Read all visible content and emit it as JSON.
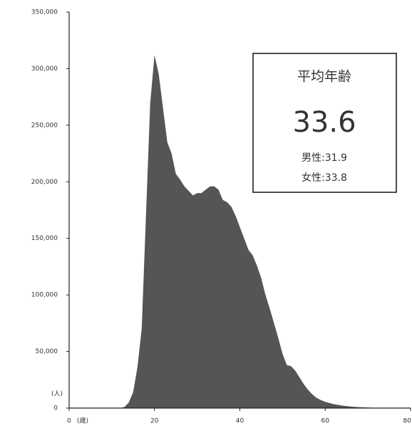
{
  "chart_data": {
    "type": "area",
    "color": "#555555",
    "x": [
      0,
      1,
      2,
      3,
      4,
      5,
      6,
      7,
      8,
      9,
      10,
      11,
      12,
      13,
      14,
      15,
      16,
      17,
      18,
      19,
      20,
      21,
      22,
      23,
      24,
      25,
      26,
      27,
      28,
      29,
      30,
      31,
      32,
      33,
      34,
      35,
      36,
      37,
      38,
      39,
      40,
      41,
      42,
      43,
      44,
      45,
      46,
      47,
      48,
      49,
      50,
      51,
      52,
      53,
      54,
      55,
      56,
      57,
      58,
      59,
      60,
      61,
      62,
      63,
      64,
      65,
      66,
      67,
      68,
      69,
      70,
      71,
      72,
      73,
      74,
      75,
      76,
      77,
      78,
      79,
      80
    ],
    "values": [
      0,
      0,
      0,
      0,
      0,
      0,
      0,
      0,
      0,
      0,
      0,
      0,
      0,
      1000,
      5000,
      14000,
      36000,
      70000,
      170000,
      270000,
      312000,
      295000,
      265000,
      235000,
      225000,
      207000,
      202000,
      196000,
      192000,
      188000,
      190000,
      190000,
      193000,
      196000,
      196000,
      193000,
      184000,
      182000,
      178000,
      170000,
      160000,
      150000,
      140000,
      135000,
      126000,
      115000,
      100000,
      88000,
      75000,
      62000,
      48000,
      38000,
      37000,
      33000,
      27000,
      21000,
      16000,
      12000,
      9000,
      7000,
      5500,
      4500,
      3500,
      2800,
      2200,
      1700,
      1300,
      1000,
      800,
      600,
      450,
      300,
      200,
      150,
      100,
      50,
      0,
      0,
      0,
      0,
      0
    ],
    "xlim": [
      0,
      80
    ],
    "xticks": [
      0,
      20,
      40,
      60,
      80
    ],
    "ylim": [
      0,
      350000
    ],
    "yticks": [
      0,
      {
        "value": 50000,
        "label": "50,000"
      },
      {
        "value": 100000,
        "label": "100,000"
      },
      {
        "value": 150000,
        "label": "150,000"
      },
      {
        "value": 200000,
        "label": "200,000"
      },
      {
        "value": 250000,
        "label": "250,000"
      },
      {
        "value": 300000,
        "label": "300,000"
      },
      {
        "value": 350000,
        "label": "350,000"
      }
    ],
    "x_unit": "(歳)",
    "y_unit": "(人)",
    "annotation": {
      "title": "平均年齢",
      "value": 33.6,
      "male": "男性:31.9",
      "female": "女性:33.8"
    }
  }
}
